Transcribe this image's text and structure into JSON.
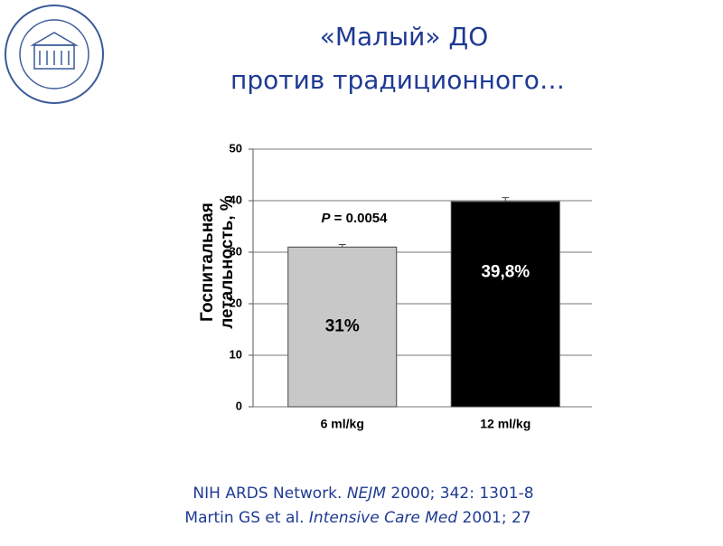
{
  "title": [
    "«Малый» ДО",
    "против традиционного…"
  ],
  "references": [
    [
      "NIH ARDS Network. ",
      "NEJM",
      " 2000; 342: 1301-8"
    ],
    [
      "Martin GS et al. ",
      "Intensive Care Med",
      " 2001; 27"
    ]
  ],
  "chart_data": {
    "type": "bar",
    "categories": [
      "6 ml/kg",
      "12 ml/kg"
    ],
    "values": [
      31,
      39.8
    ],
    "value_labels": [
      "31%",
      "39,8%"
    ],
    "errors": [
      0.5,
      0.8
    ],
    "colors": [
      "#c8c8c8",
      "#000000"
    ],
    "value_label_colors": [
      "#000000",
      "#ffffff"
    ],
    "ylabel": [
      "Госпитальная",
      "летальность, %"
    ],
    "annotation": [
      "P",
      " = 0.0054"
    ],
    "ylim": [
      0,
      50
    ],
    "yticks": [
      0,
      10,
      20,
      30,
      40,
      50
    ],
    "grid": true
  }
}
